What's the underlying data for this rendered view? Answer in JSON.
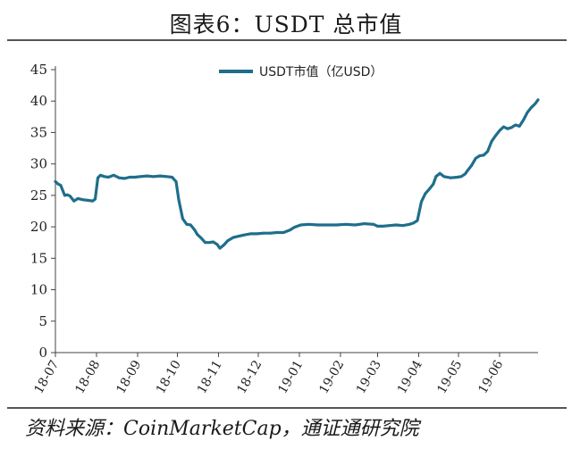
{
  "figure": {
    "title": "图表6：USDT 总市值",
    "source": "资料来源：CoinMarketCap，通证通研究院"
  },
  "chart_data": {
    "type": "line",
    "legend_position": "top-center",
    "grid": false,
    "ylim": [
      0,
      45
    ],
    "yticks": [
      "0",
      "5",
      "10",
      "15",
      "20",
      "25",
      "30",
      "35",
      "40",
      "45"
    ],
    "xticks": [
      "18-07",
      "18-08",
      "18-09",
      "18-10",
      "18-11",
      "18-12",
      "19-01",
      "19-02",
      "19-03",
      "19-04",
      "19-05",
      "19-06"
    ],
    "series": [
      {
        "name": "USDT市值（亿USD）",
        "color": "#1f6e8c",
        "x": [
          "2018-07-01",
          "2018-07-03",
          "2018-07-05",
          "2018-07-08",
          "2018-07-10",
          "2018-07-12",
          "2018-07-15",
          "2018-07-18",
          "2018-07-22",
          "2018-07-26",
          "2018-07-29",
          "2018-07-31",
          "2018-08-02",
          "2018-08-04",
          "2018-08-07",
          "2018-08-10",
          "2018-08-14",
          "2018-08-18",
          "2018-08-22",
          "2018-08-26",
          "2018-08-30",
          "2018-09-03",
          "2018-09-08",
          "2018-09-13",
          "2018-09-18",
          "2018-09-23",
          "2018-09-27",
          "2018-09-30",
          "2018-10-02",
          "2018-10-05",
          "2018-10-08",
          "2018-10-11",
          "2018-10-14",
          "2018-10-16",
          "2018-10-19",
          "2018-10-22",
          "2018-10-25",
          "2018-10-28",
          "2018-10-31",
          "2018-11-02",
          "2018-11-05",
          "2018-11-08",
          "2018-11-12",
          "2018-11-16",
          "2018-11-20",
          "2018-11-25",
          "2018-11-30",
          "2018-12-05",
          "2018-12-10",
          "2018-12-15",
          "2018-12-20",
          "2018-12-25",
          "2018-12-28",
          "2019-01-02",
          "2019-01-08",
          "2019-01-15",
          "2019-01-22",
          "2019-01-29",
          "2019-02-05",
          "2019-02-12",
          "2019-02-19",
          "2019-02-26",
          "2019-03-01",
          "2019-03-05",
          "2019-03-10",
          "2019-03-15",
          "2019-03-20",
          "2019-03-25",
          "2019-03-28",
          "2019-03-31",
          "2019-04-03",
          "2019-04-06",
          "2019-04-09",
          "2019-04-12",
          "2019-04-14",
          "2019-04-17",
          "2019-04-20",
          "2019-04-25",
          "2019-04-30",
          "2019-05-03",
          "2019-05-06",
          "2019-05-08",
          "2019-05-11",
          "2019-05-14",
          "2019-05-17",
          "2019-05-20",
          "2019-05-23",
          "2019-05-26",
          "2019-05-29",
          "2019-06-01",
          "2019-06-04",
          "2019-06-07",
          "2019-06-10",
          "2019-06-13",
          "2019-06-16",
          "2019-06-19",
          "2019-06-22",
          "2019-06-25",
          "2019-06-28",
          "2019-06-30"
        ],
        "values": [
          27.2,
          26.8,
          26.6,
          25.0,
          25.1,
          24.9,
          24.1,
          24.5,
          24.3,
          24.2,
          24.1,
          24.4,
          27.8,
          28.2,
          28.0,
          27.9,
          28.2,
          27.8,
          27.7,
          27.9,
          27.9,
          28.0,
          28.1,
          28.0,
          28.1,
          28.0,
          27.9,
          27.2,
          24.3,
          21.3,
          20.4,
          20.3,
          19.5,
          18.8,
          18.2,
          17.5,
          17.5,
          17.6,
          17.2,
          16.6,
          17.1,
          17.8,
          18.3,
          18.5,
          18.7,
          18.9,
          18.9,
          19.0,
          19.0,
          19.1,
          19.1,
          19.5,
          19.9,
          20.3,
          20.4,
          20.3,
          20.3,
          20.3,
          20.4,
          20.3,
          20.5,
          20.4,
          20.1,
          20.1,
          20.2,
          20.3,
          20.2,
          20.4,
          20.6,
          21.0,
          24.0,
          25.3,
          26.0,
          26.8,
          28.0,
          28.5,
          28.0,
          27.8,
          27.9,
          28.0,
          28.4,
          29.0,
          29.8,
          30.9,
          31.3,
          31.4,
          32.0,
          33.6,
          34.5,
          35.3,
          35.9,
          35.6,
          35.8,
          36.2,
          36.0,
          37.0,
          38.2,
          39.0,
          39.6,
          40.2
        ]
      }
    ]
  }
}
